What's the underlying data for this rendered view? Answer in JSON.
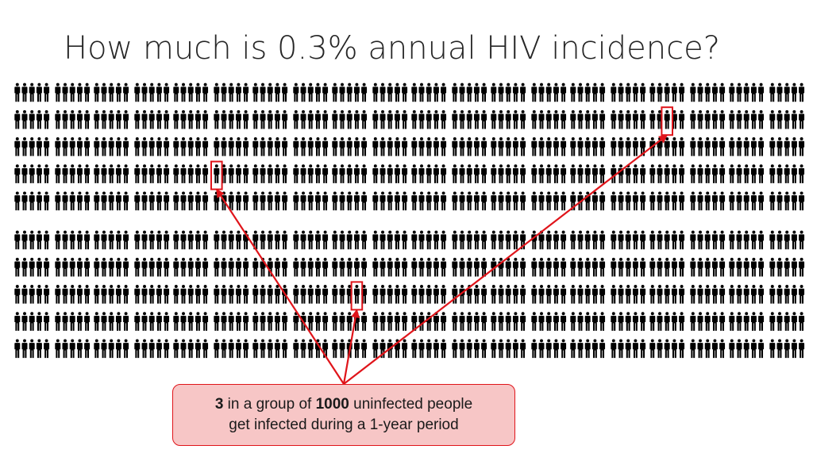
{
  "slide": {
    "title": "How much is 0.3% annual HIV incidence?"
  },
  "people_grid": {
    "icon": "person-icon",
    "block_rows": 2,
    "block_cols": 10,
    "icon_rows_per_block": 5,
    "icon_cols_per_block": 10,
    "total_people": 1000,
    "highlighted_people": 3,
    "icon_color": "#000000",
    "highlight_color": "#e0141a"
  },
  "callout": {
    "count": "3",
    "text_a": " in a group of ",
    "group_size": "1000",
    "text_b": " uninfected people",
    "line2": "get infected during a 1-year period",
    "background_color": "#f7c6c6",
    "border_color": "#e0141a"
  }
}
